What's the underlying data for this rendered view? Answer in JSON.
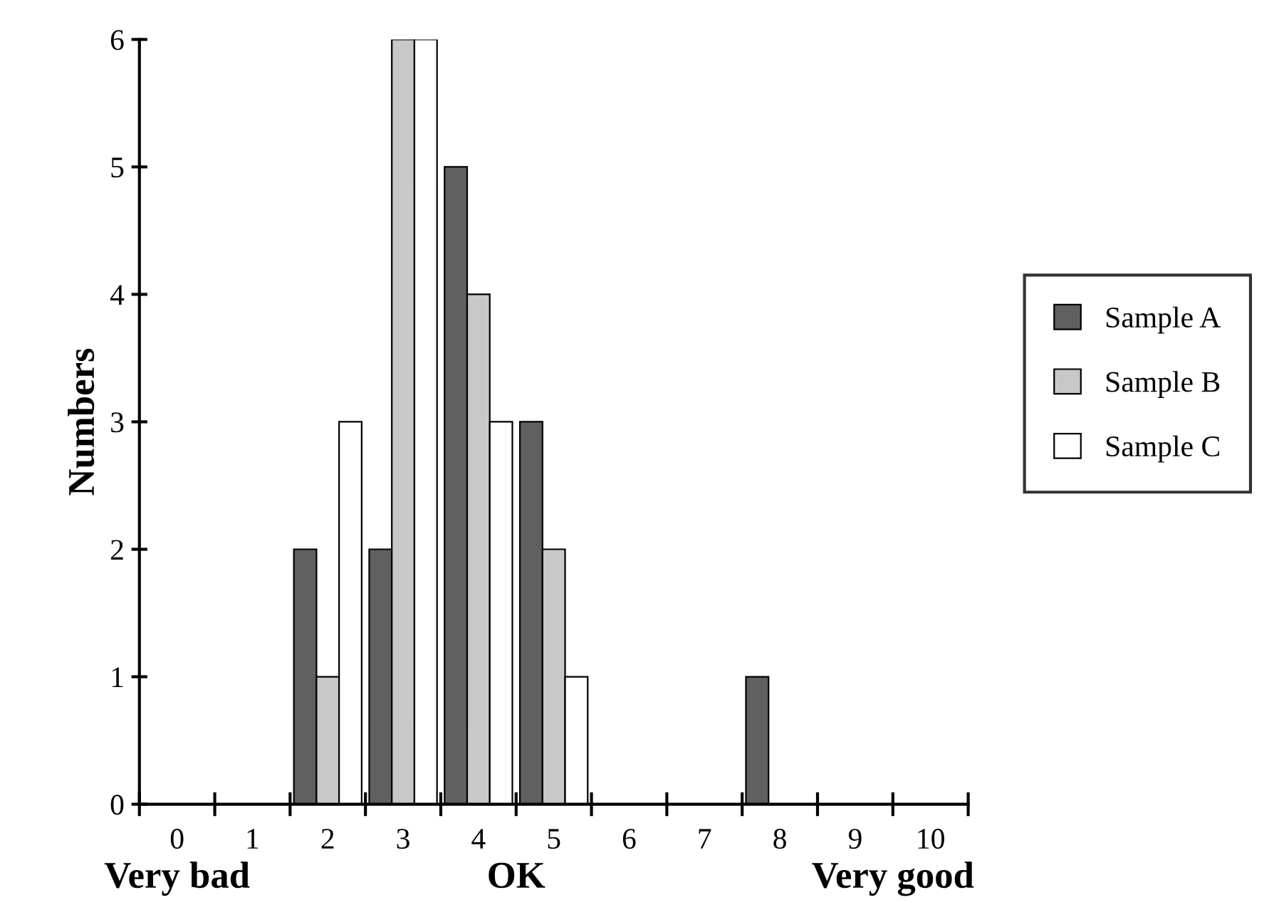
{
  "chart_data": {
    "type": "bar",
    "ylabel": "Numbers",
    "categories": [
      "0",
      "1",
      "2",
      "3",
      "4",
      "5",
      "6",
      "7",
      "8",
      "9",
      "10"
    ],
    "series": [
      {
        "name": "Sample A",
        "color": "#606060",
        "values": [
          null,
          null,
          2,
          2,
          5,
          3,
          null,
          null,
          1,
          null,
          null
        ]
      },
      {
        "name": "Sample B",
        "color": "#c8c8c8",
        "values": [
          null,
          null,
          1,
          6,
          4,
          2,
          null,
          null,
          null,
          null,
          null
        ]
      },
      {
        "name": "Sample C",
        "color": "#ffffff",
        "values": [
          null,
          null,
          3,
          6,
          3,
          1,
          null,
          null,
          null,
          null,
          null
        ]
      }
    ],
    "ylim": [
      0,
      6
    ],
    "yticks": [
      0,
      1,
      2,
      3,
      4,
      5,
      6
    ],
    "annotations": [
      "Very bad",
      "OK",
      "Very good"
    ],
    "grid": false,
    "legend": "right"
  }
}
